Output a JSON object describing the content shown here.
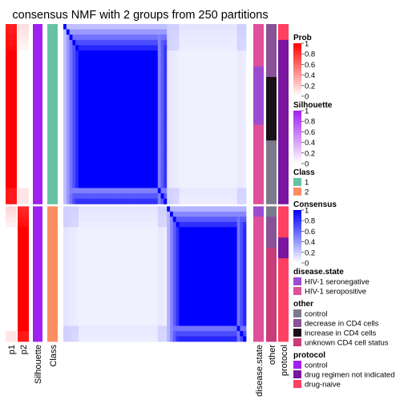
{
  "chart_data": {
    "type": "heatmap",
    "title": "consensus NMF with 2 groups from 250 partitions",
    "n_samples": 60,
    "column_labels": [
      "p1",
      "p2",
      "Silhouette",
      "Class",
      "disease.state",
      "other",
      "protocol"
    ],
    "class_sizes": [
      34,
      26
    ],
    "consensus_blocks": {
      "block1_value": 1.0,
      "block2_value": 1.0,
      "offdiag_value": 0.0,
      "edge_samples_with_lower_consensus": "first 5 and last 3 samples of class 1; first 4 and last 3 samples of class 2"
    },
    "prob_range": [
      0,
      1
    ],
    "silhouette_range": [
      0,
      1
    ],
    "consensus_range": [
      0,
      1
    ],
    "annotation_tracks": {
      "disease.state": [
        "HIV-1 seropositive ×8",
        "HIV-1 seronegative ×11",
        "HIV-1 seropositive ×15",
        "HIV-1 seronegative ×2",
        "HIV-1 seropositive ×24"
      ],
      "other": [
        "decrease in CD4 cells ×10",
        "increase in CD4 cells ×12",
        "control ×14",
        "decrease in CD4 cells ×6",
        "unknown CD4 cell status ×18"
      ],
      "protocol": [
        "drug-naive ×3",
        "drug regimen not indicated ×31",
        "drug-naive ×6",
        "drug regimen not indicated ×4",
        "drug-naive ×16"
      ]
    },
    "legends": [
      {
        "title": "Prob",
        "type": "gradient",
        "colors": [
          "#ffffff",
          "#ff0000"
        ],
        "ticks": [
          "1",
          "0.8",
          "0.6",
          "0.4",
          "0.2",
          "0"
        ]
      },
      {
        "title": "Silhouette",
        "type": "gradient",
        "colors": [
          "#ffffff",
          "#a020f0"
        ],
        "ticks": [
          "1",
          "0.8",
          "0.6",
          "0.4",
          "0.2",
          "0"
        ]
      },
      {
        "title": "Class",
        "type": "discrete",
        "items": [
          {
            "label": "1",
            "color": "#66c2a5"
          },
          {
            "label": "2",
            "color": "#fc8d62"
          }
        ]
      },
      {
        "title": "Consensus",
        "type": "gradient",
        "colors": [
          "#ffffff",
          "#0000ff"
        ],
        "ticks": [
          "1",
          "0.8",
          "0.6",
          "0.4",
          "0.2",
          "0"
        ]
      },
      {
        "title": "disease.state",
        "type": "discrete",
        "items": [
          {
            "label": "HIV-1 seronegative",
            "color": "#9c4cd3"
          },
          {
            "label": "HIV-1 seropositive",
            "color": "#e0509a"
          }
        ]
      },
      {
        "title": "other",
        "type": "discrete",
        "items": [
          {
            "label": "control",
            "color": "#7a7a8a"
          },
          {
            "label": "decrease in CD4 cells",
            "color": "#8a5296"
          },
          {
            "label": "increase in CD4 cells",
            "color": "#1a1018"
          },
          {
            "label": "unknown CD4 cell status",
            "color": "#c83c7a"
          }
        ]
      },
      {
        "title": "protocol",
        "type": "discrete",
        "items": [
          {
            "label": "control",
            "color": "#a020f0"
          },
          {
            "label": "drug regimen not indicated",
            "color": "#7a16a0"
          },
          {
            "label": "drug-naive",
            "color": "#ff4060"
          }
        ]
      }
    ]
  }
}
